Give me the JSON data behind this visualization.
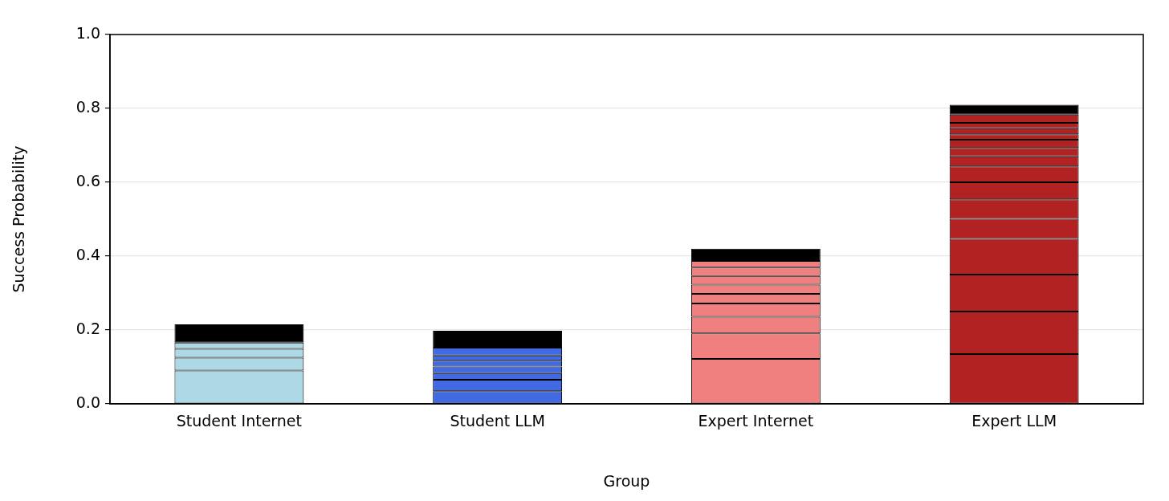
{
  "chart_data": {
    "type": "bar",
    "stacked": true,
    "xlabel": "Group",
    "ylabel": "Success Probability",
    "categories": [
      "Student Internet",
      "Student LLM",
      "Expert Internet",
      "Expert LLM"
    ],
    "ylim": [
      0,
      1
    ],
    "yticks": [
      {
        "value": 0,
        "label": "0.0"
      },
      {
        "value": 0.2,
        "label": "0.2"
      },
      {
        "value": 0.4,
        "label": "0.4"
      },
      {
        "value": 0.6,
        "label": "0.6"
      },
      {
        "value": 0.8,
        "label": "0.8"
      },
      {
        "value": 1,
        "label": "1.0"
      }
    ],
    "grid": "y",
    "series": [
      {
        "colors": [
          "#add8e6",
          "#4169e1",
          "#f08080",
          "#b22222"
        ],
        "values": [
          0.09,
          0.034,
          0.122,
          0.135
        ]
      },
      {
        "colors": [
          "#add8e6",
          "#4169e1",
          "#f08080",
          "#b22222"
        ],
        "values": [
          0.035,
          0.031,
          0.069,
          0.115
        ]
      },
      {
        "colors": [
          "#add8e6",
          "#4169e1",
          "#f08080",
          "#b22222"
        ],
        "values": [
          0.024,
          0.018,
          0.045,
          0.1
        ]
      },
      {
        "colors": [
          "#add8e6",
          "#4169e1",
          "#f08080",
          "#b22222"
        ],
        "values": [
          0.017,
          0.018,
          0.036,
          0.097
        ]
      },
      {
        "colors": [
          "#000000",
          "#4169e1",
          "#f08080",
          "#b22222"
        ],
        "values": [
          0.049,
          0.016,
          0.026,
          0.054
        ]
      },
      {
        "colors": [
          "#add8e6",
          "#4169e1",
          "#f08080",
          "#b22222"
        ],
        "values": [
          null,
          0.014,
          0.025,
          0.053
        ]
      },
      {
        "colors": [
          "#add8e6",
          "#4169e1",
          "#f08080",
          "#b22222"
        ],
        "values": [
          null,
          0.021,
          0.023,
          0.046
        ]
      },
      {
        "colors": [
          "#add8e6",
          "#000000",
          "#f08080",
          "#b22222"
        ],
        "values": [
          null,
          0.046,
          0.023,
          0.043
        ]
      },
      {
        "colors": [
          "#add8e6",
          "#4169e1",
          "#f08080",
          "#b22222"
        ],
        "values": [
          null,
          null,
          0.018,
          0.027
        ]
      },
      {
        "colors": [
          "#add8e6",
          "#4169e1",
          "#000000",
          "#b22222"
        ],
        "values": [
          null,
          null,
          0.033,
          0.023
        ]
      },
      {
        "colors": [
          "#add8e6",
          "#4169e1",
          "#f08080",
          "#b22222"
        ],
        "values": [
          null,
          null,
          null,
          0.022
        ]
      },
      {
        "colors": [
          "#add8e6",
          "#4169e1",
          "#f08080",
          "#b22222"
        ],
        "values": [
          null,
          null,
          null,
          0.015
        ]
      },
      {
        "colors": [
          "#add8e6",
          "#4169e1",
          "#f08080",
          "#b22222"
        ],
        "values": [
          null,
          null,
          null,
          0.016
        ]
      },
      {
        "colors": [
          "#add8e6",
          "#4169e1",
          "#f08080",
          "#b22222"
        ],
        "values": [
          null,
          null,
          null,
          0.015
        ]
      },
      {
        "colors": [
          "#add8e6",
          "#4169e1",
          "#f08080",
          "#b22222"
        ],
        "values": [
          null,
          null,
          null,
          0.022
        ]
      },
      {
        "colors": [
          "#add8e6",
          "#4169e1",
          "#f08080",
          "#000000"
        ],
        "values": [
          null,
          null,
          null,
          0.027
        ]
      }
    ]
  }
}
